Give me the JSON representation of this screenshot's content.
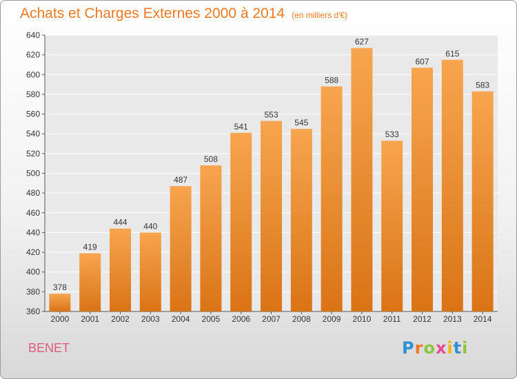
{
  "title": "Achats et Charges Externes 2000 à 2014",
  "subtitle": "(en milliers d'€)",
  "place": "BENET",
  "brand": {
    "letters": [
      "P",
      "r",
      "o",
      "x",
      "i",
      "t",
      "i"
    ],
    "colors": [
      "#2e8fd6",
      "#f07820",
      "#8cc63f",
      "#e84a9a",
      "#f2b705",
      "#2e8fd6",
      "#8cc63f"
    ]
  },
  "colors": {
    "accent": "#f07820",
    "bar_top": "#f7a54e",
    "bar_bottom": "#d97416",
    "place": "#e05a7a",
    "grid": "#ffffff"
  },
  "chart_data": {
    "type": "bar",
    "title": "Achats et Charges Externes 2000 à 2014",
    "subtitle": "(en milliers d'€)",
    "categories": [
      "2000",
      "2001",
      "2002",
      "2003",
      "2004",
      "2005",
      "2006",
      "2007",
      "2008",
      "2009",
      "2010",
      "2011",
      "2012",
      "2013",
      "2014"
    ],
    "values": [
      378,
      419,
      444,
      440,
      487,
      508,
      541,
      553,
      545,
      588,
      627,
      533,
      607,
      615,
      583
    ],
    "ylim": [
      360,
      640
    ],
    "yticks": [
      360,
      380,
      400,
      420,
      440,
      460,
      480,
      500,
      520,
      540,
      560,
      580,
      600,
      620,
      640
    ],
    "grid": true,
    "data_labels": true
  }
}
